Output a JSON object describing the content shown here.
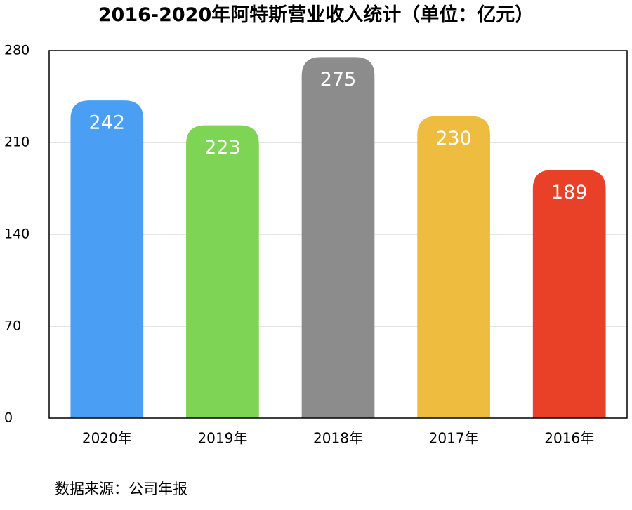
{
  "chart_data": {
    "type": "bar",
    "title": "2016-2020年阿特斯营业收入统计（单位：亿元）",
    "xlabel": "",
    "ylabel": "",
    "categories": [
      "2020年",
      "2019年",
      "2018年",
      "2017年",
      "2016年"
    ],
    "values": [
      242,
      223,
      275,
      230,
      189
    ],
    "data_labels": [
      "242",
      "223",
      "275",
      "230",
      "189"
    ],
    "colors": [
      "#4A9FF5",
      "#7ED555",
      "#8C8C8C",
      "#EEBD40",
      "#E84127"
    ],
    "ylim": [
      0,
      280
    ],
    "yticks": [
      0,
      70,
      140,
      210,
      280
    ],
    "ytick_labels": [
      "0",
      "70",
      "140",
      "210",
      "280"
    ],
    "grid": true,
    "legend": "none"
  },
  "footer": {
    "source": "数据来源：公司年报"
  }
}
